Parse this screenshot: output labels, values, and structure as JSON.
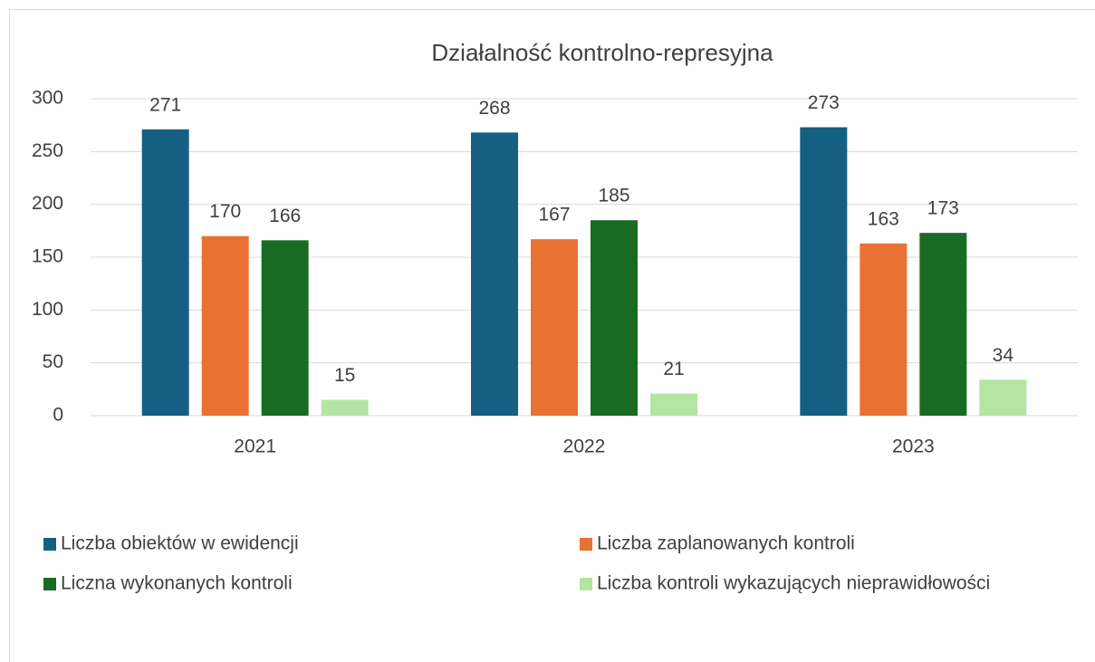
{
  "chart_data": {
    "type": "bar",
    "title": "Działalność kontrolno-represyjna",
    "categories": [
      "2021",
      "2022",
      "2023"
    ],
    "series": [
      {
        "name": "Liczba obiektów w ewidencji",
        "color": "#156082",
        "values": [
          271,
          268,
          273
        ]
      },
      {
        "name": "Liczba zaplanowanych kontroli",
        "color": "#e97132",
        "values": [
          170,
          167,
          163
        ]
      },
      {
        "name": "Liczna wykonanych kontroli",
        "color": "#196b24",
        "values": [
          166,
          185,
          173
        ]
      },
      {
        "name": "Liczba kontroli wykazujących nieprawidłowości",
        "color": "#b4e5a2",
        "values": [
          15,
          21,
          34
        ]
      }
    ],
    "ylim": [
      0,
      300
    ],
    "yticks": [
      0,
      50,
      100,
      150,
      200,
      250,
      300
    ],
    "grid": true,
    "legend": "bottom"
  }
}
